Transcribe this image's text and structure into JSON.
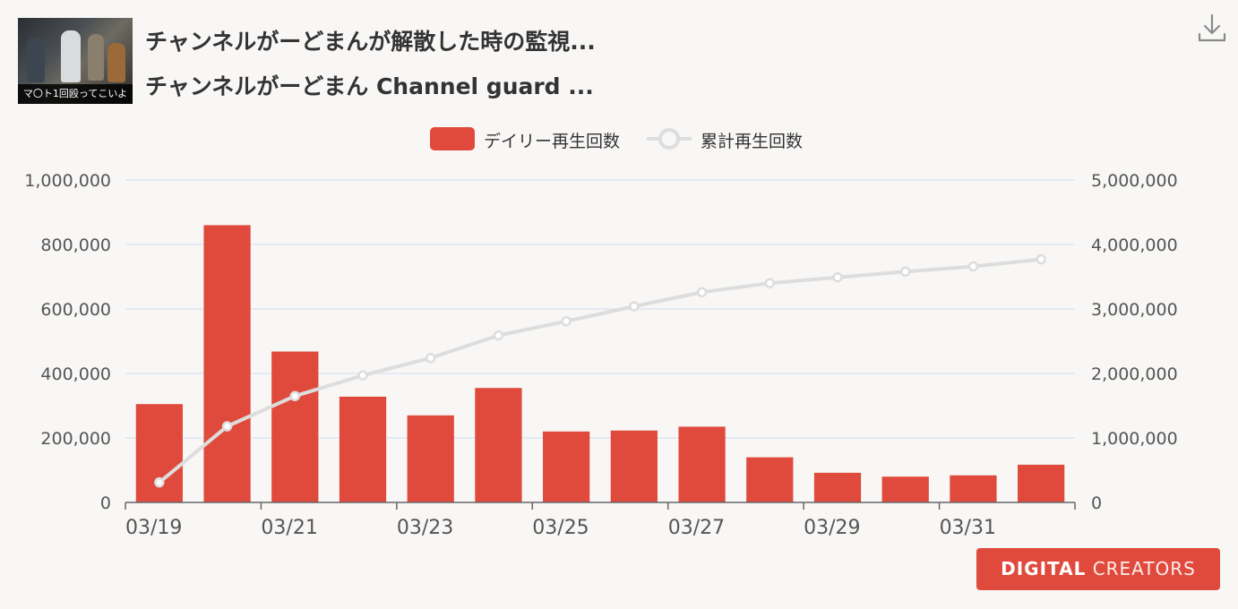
{
  "header": {
    "thumbnail_caption": "マ〇ト1回殴ってこいよ",
    "title_line1": "チャンネルがーどまんが解散した時の監視...",
    "title_line2": "チャンネルがーどまん Channel guard ..."
  },
  "legend": {
    "daily": "デイリー再生回数",
    "cumulative": "累計再生回数"
  },
  "branding": {
    "logo_part1": "DIGITAL",
    "logo_part2": "CREATORS"
  },
  "colors": {
    "bar": "#e04a3c",
    "line": "#dddddd",
    "grid": "#dce6f2",
    "axis_text": "#555555"
  },
  "chart_data": {
    "type": "bar",
    "x": [
      "03/19",
      "03/20",
      "03/21",
      "03/22",
      "03/23",
      "03/24",
      "03/25",
      "03/26",
      "03/27",
      "03/28",
      "03/29",
      "03/30",
      "03/31",
      "04/01"
    ],
    "x_tick_labels": [
      "03/19",
      "03/21",
      "03/23",
      "03/25",
      "03/27",
      "03/29",
      "03/31"
    ],
    "series": [
      {
        "name": "デイリー再生回数",
        "type": "bar",
        "axis": "left",
        "values": [
          305000,
          860000,
          468000,
          328000,
          270000,
          355000,
          220000,
          223000,
          235000,
          140000,
          92000,
          80000,
          84000,
          117000
        ]
      },
      {
        "name": "累計再生回数",
        "type": "line",
        "axis": "right",
        "values": [
          310000,
          1180000,
          1650000,
          1970000,
          2240000,
          2590000,
          2810000,
          3040000,
          3260000,
          3400000,
          3490000,
          3580000,
          3660000,
          3770000
        ]
      }
    ],
    "y_left": {
      "min": 0,
      "max": 1000000,
      "ticks": [
        "0",
        "200,000",
        "400,000",
        "600,000",
        "800,000",
        "1,000,000"
      ]
    },
    "y_right": {
      "min": 0,
      "max": 5000000,
      "ticks": [
        "0",
        "1,000,000",
        "2,000,000",
        "3,000,000",
        "4,000,000",
        "5,000,000"
      ]
    },
    "grid": true,
    "legend_position": "top-center"
  }
}
